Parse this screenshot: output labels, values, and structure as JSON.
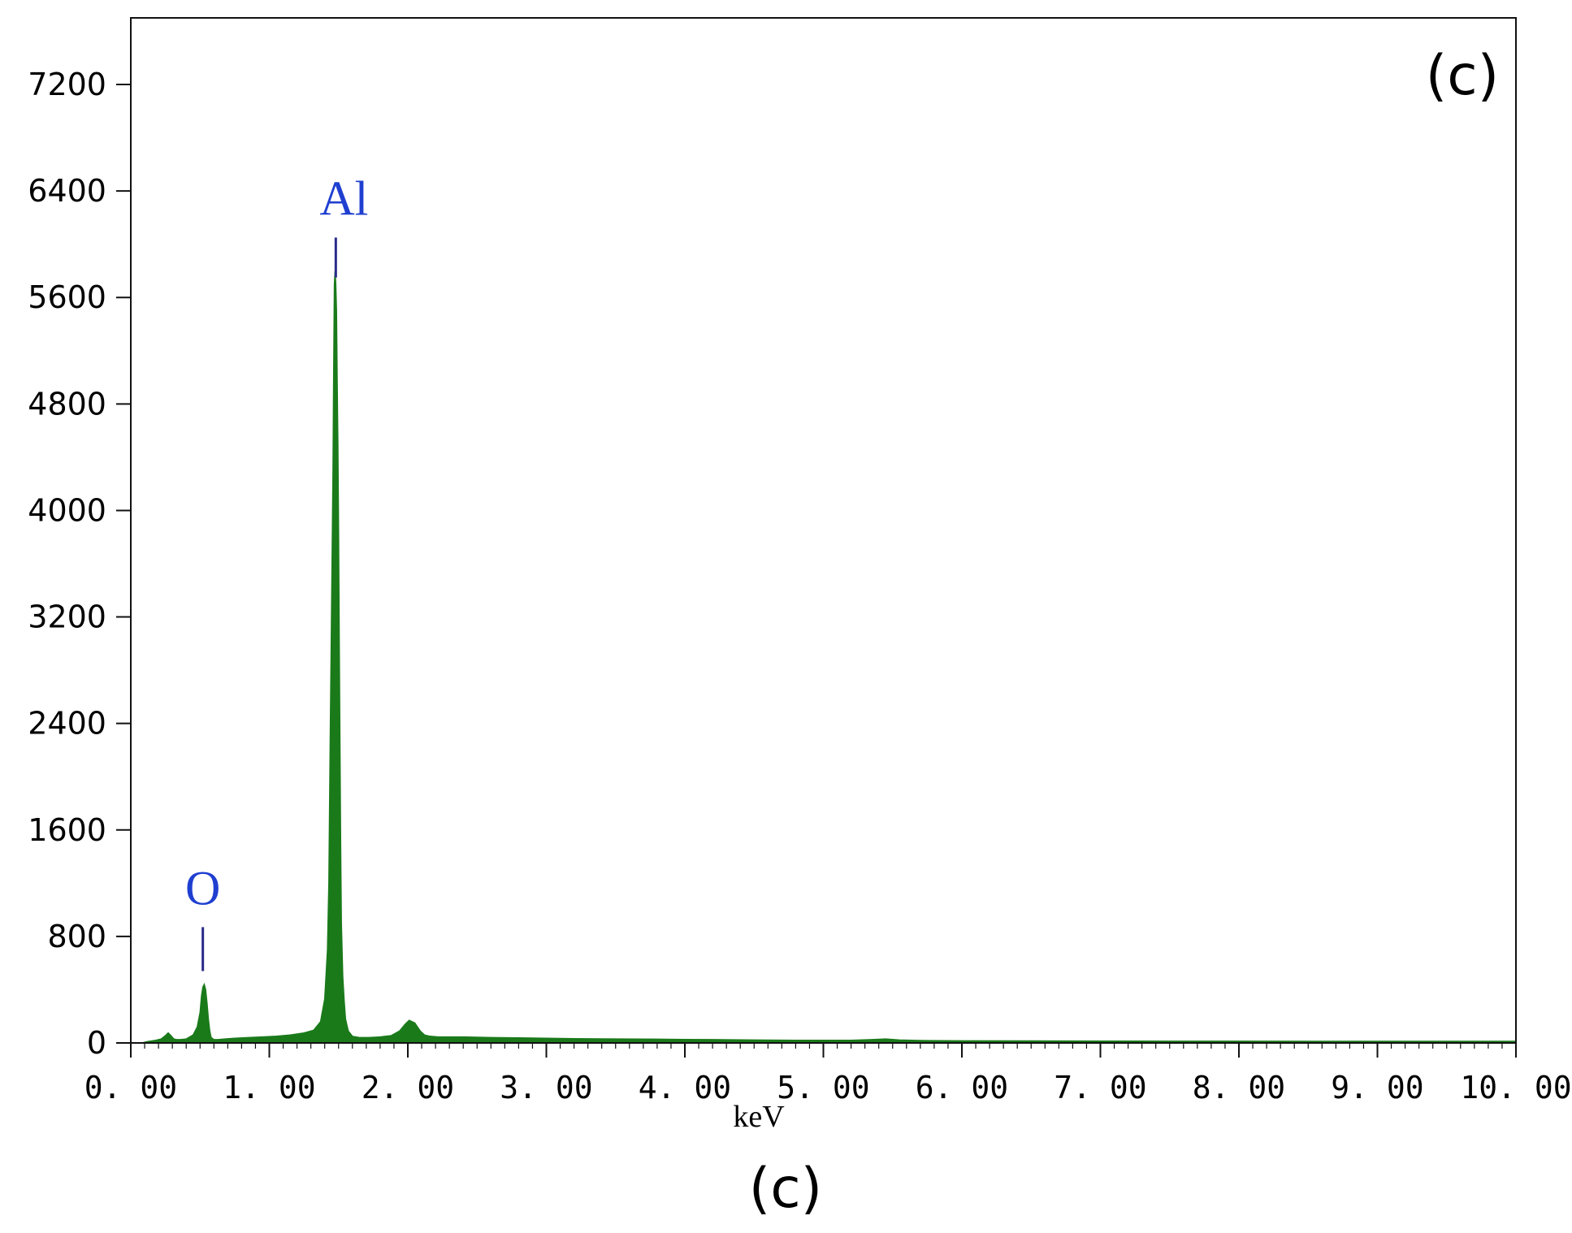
{
  "chart_data": {
    "type": "area",
    "panel_label": "(c)",
    "caption": "(c)",
    "xlabel": "keV",
    "ylabel": "",
    "xlim": [
      0,
      10
    ],
    "ylim": [
      0,
      7700
    ],
    "x_ticks": [
      0,
      1,
      2,
      3,
      4,
      5,
      6,
      7,
      8,
      9,
      10
    ],
    "x_tick_labels": [
      "0. 00",
      "1. 00",
      "2. 00",
      "3. 00",
      "4. 00",
      "5. 00",
      "6. 00",
      "7. 00",
      "8. 00",
      "9. 00",
      "10. 00"
    ],
    "y_ticks": [
      0,
      800,
      1600,
      2400,
      3200,
      4000,
      4800,
      5600,
      6400,
      7200
    ],
    "y_tick_labels": [
      "0",
      "800",
      "1600",
      "2400",
      "3200",
      "4000",
      "4800",
      "5600",
      "6400",
      "7200"
    ],
    "grid": false,
    "series": [
      {
        "color": "#1a7a1a",
        "x": [
          0.08,
          0.12,
          0.18,
          0.22,
          0.25,
          0.27,
          0.29,
          0.31,
          0.33,
          0.36,
          0.4,
          0.45,
          0.48,
          0.5,
          0.51,
          0.52,
          0.53,
          0.54,
          0.55,
          0.56,
          0.57,
          0.58,
          0.6,
          0.63,
          0.68,
          0.75,
          0.85,
          0.95,
          1.05,
          1.15,
          1.25,
          1.32,
          1.37,
          1.4,
          1.42,
          1.43,
          1.44,
          1.45,
          1.46,
          1.465,
          1.47,
          1.475,
          1.48,
          1.485,
          1.49,
          1.495,
          1.5,
          1.505,
          1.51,
          1.515,
          1.52,
          1.53,
          1.54,
          1.55,
          1.57,
          1.6,
          1.65,
          1.72,
          1.8,
          1.88,
          1.94,
          1.98,
          2.01,
          2.03,
          2.05,
          2.07,
          2.09,
          2.12,
          2.16,
          2.22,
          2.3,
          2.4,
          2.6,
          2.8,
          3.0,
          3.2,
          3.5,
          3.8,
          4.0,
          4.2,
          4.5,
          4.8,
          5.0,
          5.2,
          5.35,
          5.45,
          5.55,
          5.7,
          6.0,
          6.5,
          7.0,
          7.5,
          8.0,
          8.5,
          9.0,
          9.5,
          10.0
        ],
        "y": [
          0,
          10,
          20,
          30,
          55,
          75,
          55,
          30,
          25,
          25,
          30,
          60,
          120,
          230,
          350,
          420,
          440,
          400,
          300,
          180,
          90,
          40,
          25,
          25,
          30,
          35,
          40,
          45,
          50,
          60,
          75,
          95,
          160,
          330,
          700,
          1200,
          2300,
          3300,
          4300,
          5100,
          5700,
          5800,
          5700,
          5500,
          5000,
          4500,
          3800,
          3000,
          2200,
          1500,
          900,
          500,
          320,
          180,
          90,
          50,
          40,
          40,
          45,
          55,
          90,
          140,
          170,
          160,
          150,
          120,
          90,
          60,
          50,
          45,
          45,
          45,
          40,
          38,
          35,
          32,
          30,
          28,
          26,
          25,
          22,
          20,
          20,
          20,
          25,
          30,
          22,
          18,
          16,
          15,
          14,
          13,
          13,
          12,
          12,
          12,
          12
        ]
      }
    ],
    "annotations": [
      {
        "text": "O",
        "x": 0.52,
        "y_line_top": 870,
        "y_line_bottom": 540,
        "color": "#1f3fd0",
        "line_color": "#2a2a8a"
      },
      {
        "text": "Al",
        "x": 1.48,
        "y_line_top": 6050,
        "y_line_bottom": 5750,
        "color": "#1f3fd0",
        "line_color": "#2a2a8a"
      }
    ]
  }
}
